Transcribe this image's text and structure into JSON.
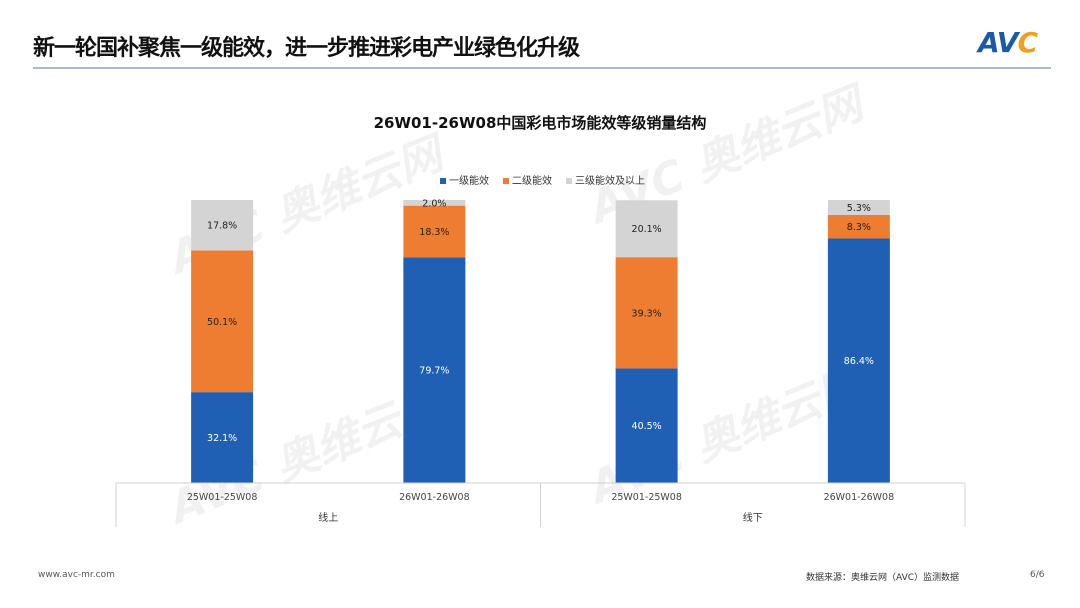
{
  "header": {
    "title": "新一轮国补聚焦一级能效，进一步推进彩电产业绿色化升级",
    "logo": "AVC"
  },
  "watermark": "AVC 奥维云网 ALL VIEW CLOUD",
  "chart_data": {
    "type": "bar",
    "stacked": true,
    "title": "26W01-26W08中国彩电市场能效等级销量结构",
    "categories": [
      "25W01-25W08",
      "26W01-26W08",
      "25W01-25W08",
      "26W01-26W08"
    ],
    "groups": [
      {
        "label": "线上",
        "span": 2
      },
      {
        "label": "线下",
        "span": 2
      }
    ],
    "series": [
      {
        "name": "一级能效",
        "color": "#1f5fb4",
        "values": [
          32.1,
          79.7,
          40.5,
          86.4
        ]
      },
      {
        "name": "二级能效",
        "color": "#ef7d31",
        "values": [
          50.1,
          18.3,
          39.3,
          8.3
        ]
      },
      {
        "name": "三级能效及以上",
        "color": "#d4d4d4",
        "values": [
          17.8,
          2.0,
          20.1,
          5.3
        ]
      }
    ],
    "ylim": [
      0,
      100
    ],
    "legend": "top-center",
    "grid": false
  },
  "footer": {
    "website": "www.avc-mr.com",
    "source": "数据来源：奥维云网（AVC）监测数据",
    "page": "6/6"
  }
}
